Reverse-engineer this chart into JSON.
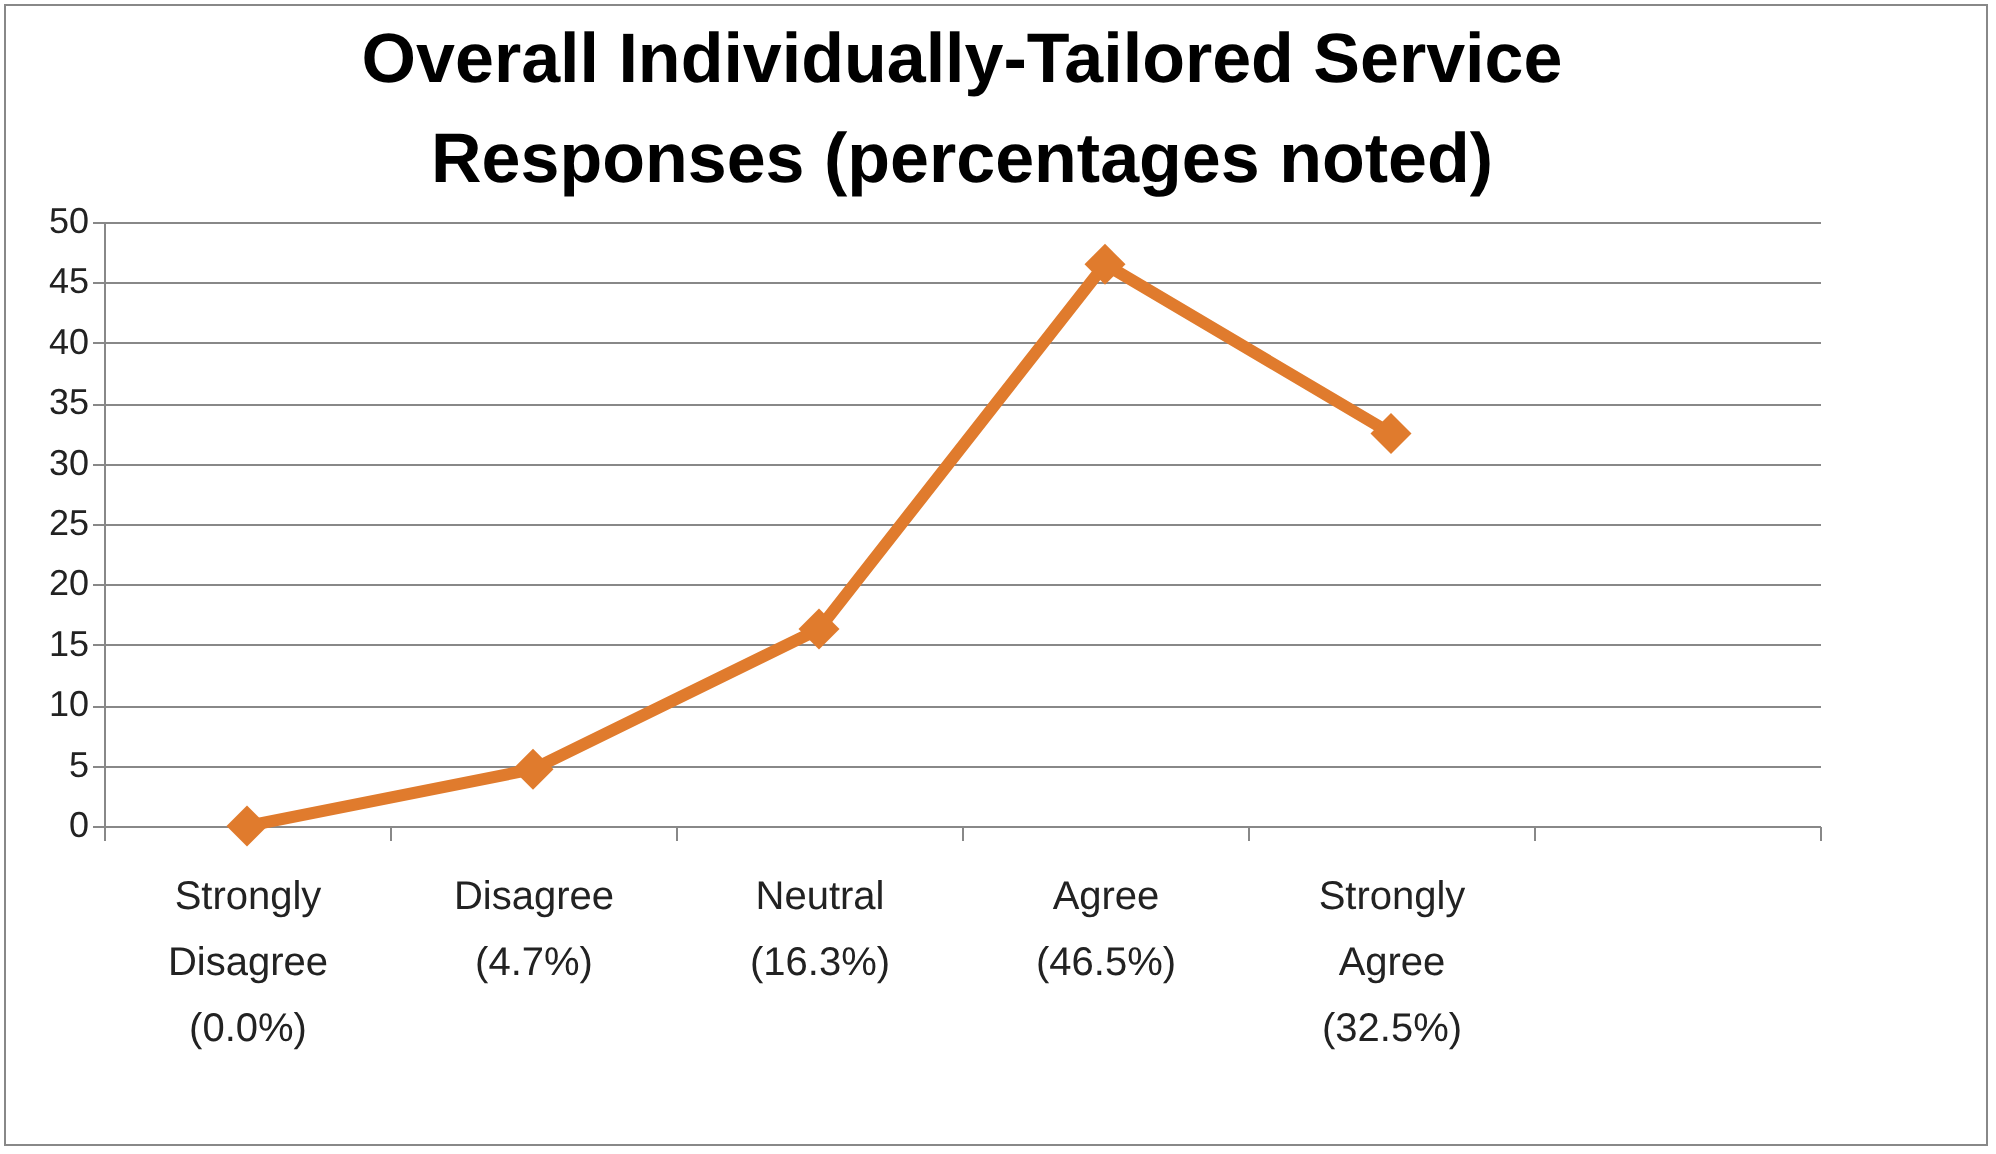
{
  "chart_data": {
    "type": "line",
    "title": "Overall Individually-Tailored Service Responses (percentages noted)",
    "categories": [
      "Strongly\nDisagree\n(0.0%)",
      "Disagree\n(4.7%)",
      "Neutral\n(16.3%)",
      "Agree\n(46.5%)",
      "Strongly\nAgree\n(32.5%)",
      null
    ],
    "series": [
      {
        "color": "#e07b2d",
        "values": [
          0,
          4.7,
          16.3,
          46.5,
          32.5,
          null
        ]
      }
    ],
    "ylim": [
      0,
      50
    ],
    "yticks": [
      0,
      5,
      10,
      15,
      20,
      25,
      30,
      35,
      40,
      45,
      50
    ],
    "grid": "y",
    "legend": false,
    "marker": "diamond",
    "line_style": "solid"
  }
}
